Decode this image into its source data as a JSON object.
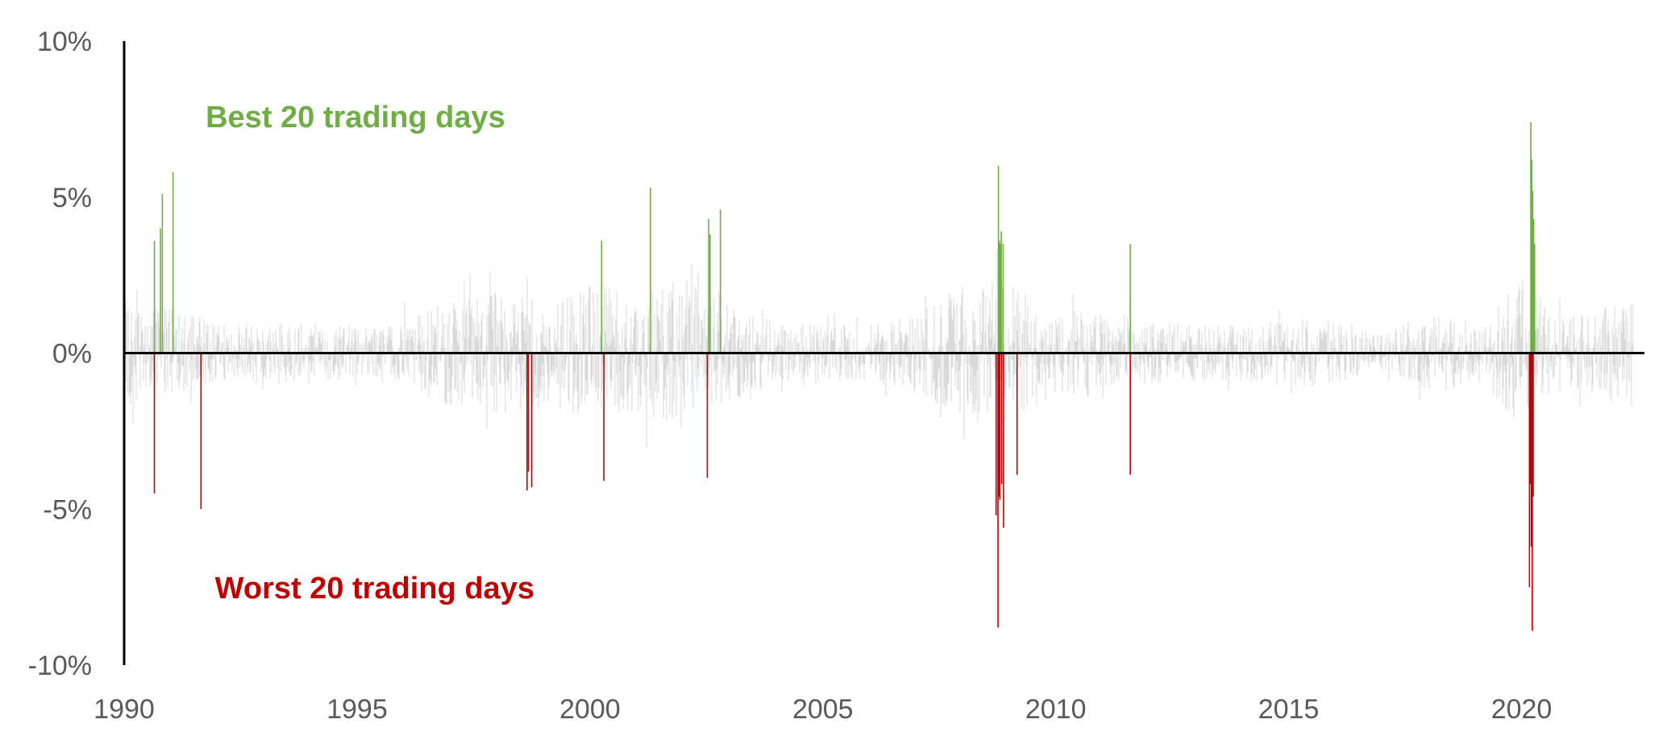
{
  "chart_data": {
    "type": "bar",
    "title": "",
    "xlabel": "",
    "ylabel": "",
    "ylim": [
      -10,
      10
    ],
    "xlim": [
      1990,
      2022.5
    ],
    "y_ticks": [
      "10%",
      "5%",
      "0%",
      "-5%",
      "-10%"
    ],
    "y_tick_values": [
      10,
      5,
      0,
      -5,
      -10
    ],
    "x_ticks": [
      "1990",
      "1995",
      "2000",
      "2005",
      "2010",
      "2015",
      "2020"
    ],
    "x_tick_values": [
      1990,
      1995,
      2000,
      2005,
      2010,
      2015,
      2020
    ],
    "grid": false,
    "legend": "none",
    "annotations": [
      {
        "text": "Best 20 trading days",
        "color": "#70ad47"
      },
      {
        "text": "Worst 20 trading days",
        "color": "#c00000"
      }
    ],
    "background_series": {
      "name": "",
      "description_color": "#d9d9d9",
      "volatility_envelope": [
        [
          1990.0,
          1.8
        ],
        [
          1990.5,
          1.5
        ],
        [
          1991.0,
          1.4
        ],
        [
          1992.0,
          1.0
        ],
        [
          1993.0,
          0.9
        ],
        [
          1994.0,
          1.0
        ],
        [
          1995.0,
          0.8
        ],
        [
          1996.0,
          1.1
        ],
        [
          1997.0,
          1.7
        ],
        [
          1998.0,
          2.0
        ],
        [
          1999.0,
          1.8
        ],
        [
          2000.0,
          2.2
        ],
        [
          2001.0,
          2.0
        ],
        [
          2002.0,
          2.4
        ],
        [
          2003.0,
          1.6
        ],
        [
          2004.0,
          1.0
        ],
        [
          2005.0,
          0.9
        ],
        [
          2006.0,
          0.9
        ],
        [
          2007.0,
          1.3
        ],
        [
          2008.0,
          2.2
        ],
        [
          2009.0,
          2.4
        ],
        [
          2010.0,
          1.3
        ],
        [
          2011.0,
          1.5
        ],
        [
          2012.0,
          1.0
        ],
        [
          2013.0,
          0.9
        ],
        [
          2014.0,
          0.9
        ],
        [
          2015.0,
          1.1
        ],
        [
          2016.0,
          1.0
        ],
        [
          2017.0,
          0.6
        ],
        [
          2018.0,
          1.3
        ],
        [
          2019.0,
          1.0
        ],
        [
          2020.0,
          2.4
        ],
        [
          2021.0,
          1.1
        ],
        [
          2022.5,
          1.9
        ]
      ]
    },
    "series": [
      {
        "name": "Best 20 trading days",
        "color": "#70ad47",
        "points": [
          {
            "x": 1990.65,
            "y": 3.6
          },
          {
            "x": 1990.78,
            "y": 4.0
          },
          {
            "x": 1990.82,
            "y": 5.1
          },
          {
            "x": 1991.05,
            "y": 5.8
          },
          {
            "x": 2000.25,
            "y": 3.6
          },
          {
            "x": 2001.3,
            "y": 5.3
          },
          {
            "x": 2002.55,
            "y": 4.3
          },
          {
            "x": 2002.58,
            "y": 3.8
          },
          {
            "x": 2002.8,
            "y": 4.6
          },
          {
            "x": 2008.77,
            "y": 6.0
          },
          {
            "x": 2008.79,
            "y": 3.6
          },
          {
            "x": 2008.83,
            "y": 3.9
          },
          {
            "x": 2008.87,
            "y": 3.5
          },
          {
            "x": 2011.6,
            "y": 3.5
          },
          {
            "x": 2020.2,
            "y": 7.4
          },
          {
            "x": 2020.22,
            "y": 6.2
          },
          {
            "x": 2020.24,
            "y": 5.2
          },
          {
            "x": 2020.26,
            "y": 4.3
          },
          {
            "x": 2008.81,
            "y": 3.5
          },
          {
            "x": 2020.28,
            "y": 3.5
          }
        ]
      },
      {
        "name": "Worst 20 trading days",
        "color": "#c00000",
        "points": [
          {
            "x": 1990.65,
            "y": -4.5
          },
          {
            "x": 1991.65,
            "y": -5.0
          },
          {
            "x": 1998.65,
            "y": -4.4
          },
          {
            "x": 1998.68,
            "y": -3.8
          },
          {
            "x": 1998.75,
            "y": -4.3
          },
          {
            "x": 2000.3,
            "y": -4.1
          },
          {
            "x": 2002.52,
            "y": -4.0
          },
          {
            "x": 2008.72,
            "y": -5.2
          },
          {
            "x": 2008.76,
            "y": -8.8
          },
          {
            "x": 2008.78,
            "y": -4.6
          },
          {
            "x": 2008.8,
            "y": -4.7
          },
          {
            "x": 2008.84,
            "y": -4.2
          },
          {
            "x": 2008.88,
            "y": -5.6
          },
          {
            "x": 2009.17,
            "y": -3.9
          },
          {
            "x": 2011.6,
            "y": -3.9
          },
          {
            "x": 2020.17,
            "y": -7.5
          },
          {
            "x": 2020.19,
            "y": -4.2
          },
          {
            "x": 2020.21,
            "y": -6.2
          },
          {
            "x": 2020.23,
            "y": -8.9
          },
          {
            "x": 2020.25,
            "y": -4.6
          }
        ]
      }
    ]
  }
}
